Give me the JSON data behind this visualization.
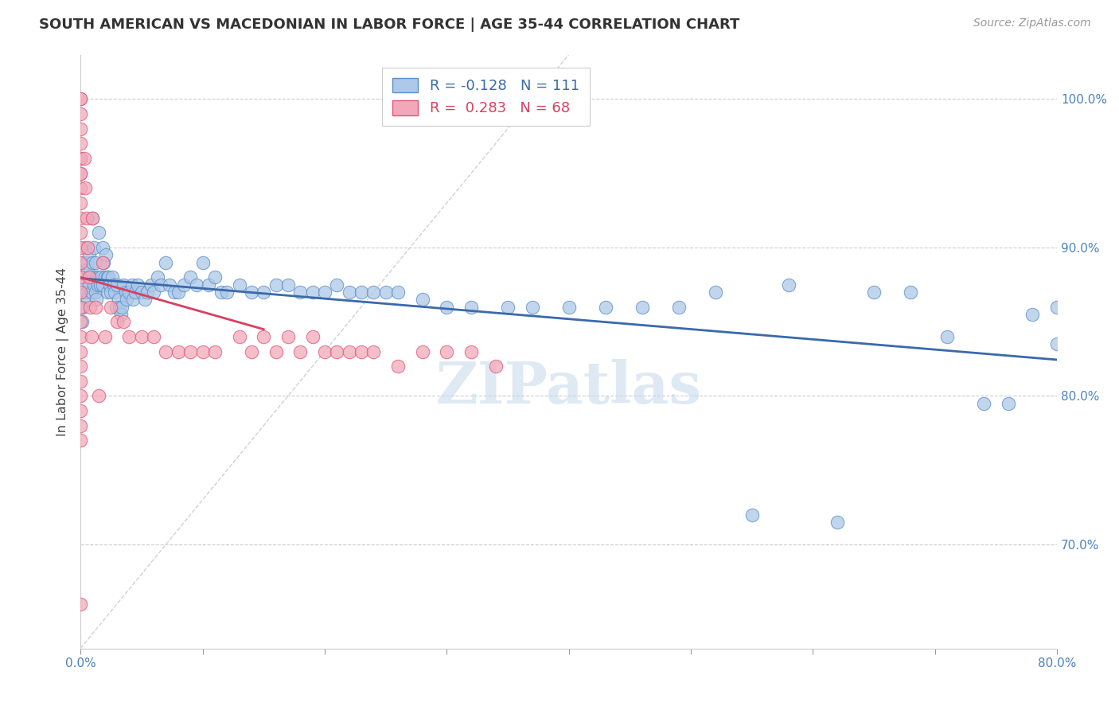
{
  "title": "SOUTH AMERICAN VS MACEDONIAN IN LABOR FORCE | AGE 35-44 CORRELATION CHART",
  "source": "Source: ZipAtlas.com",
  "ylabel": "In Labor Force | Age 35-44",
  "xlim": [
    0.0,
    0.8
  ],
  "ylim": [
    0.63,
    1.03
  ],
  "xticks": [
    0.0,
    0.1,
    0.2,
    0.3,
    0.4,
    0.5,
    0.6,
    0.7,
    0.8
  ],
  "xticklabels": [
    "0.0%",
    "",
    "",
    "",
    "",
    "",
    "",
    "",
    "80.0%"
  ],
  "yticks_right": [
    0.7,
    0.8,
    0.9,
    1.0
  ],
  "ytick_labels_right": [
    "70.0%",
    "80.0%",
    "90.0%",
    "100.0%"
  ],
  "blue_R": -0.128,
  "blue_N": 111,
  "pink_R": 0.283,
  "pink_N": 68,
  "blue_color": "#adc8e8",
  "pink_color": "#f2a8ba",
  "blue_edge_color": "#5b8fca",
  "pink_edge_color": "#e05878",
  "blue_line_color": "#3a6aaa",
  "pink_line_color": "#d84060",
  "diag_line_color": "#cccccc",
  "watermark": "ZIPatlas",
  "blue_scatter_x": [
    0.001,
    0.001,
    0.001,
    0.002,
    0.002,
    0.003,
    0.003,
    0.004,
    0.004,
    0.005,
    0.005,
    0.006,
    0.006,
    0.007,
    0.007,
    0.008,
    0.009,
    0.01,
    0.01,
    0.011,
    0.011,
    0.012,
    0.012,
    0.013,
    0.013,
    0.014,
    0.015,
    0.015,
    0.016,
    0.017,
    0.018,
    0.018,
    0.019,
    0.02,
    0.021,
    0.022,
    0.022,
    0.023,
    0.024,
    0.025,
    0.026,
    0.027,
    0.028,
    0.029,
    0.03,
    0.031,
    0.032,
    0.033,
    0.034,
    0.035,
    0.037,
    0.038,
    0.04,
    0.042,
    0.043,
    0.045,
    0.047,
    0.05,
    0.053,
    0.055,
    0.058,
    0.06,
    0.063,
    0.066,
    0.07,
    0.073,
    0.077,
    0.08,
    0.085,
    0.09,
    0.095,
    0.1,
    0.105,
    0.11,
    0.115,
    0.12,
    0.13,
    0.14,
    0.15,
    0.16,
    0.17,
    0.18,
    0.19,
    0.2,
    0.21,
    0.22,
    0.23,
    0.24,
    0.25,
    0.26,
    0.28,
    0.3,
    0.32,
    0.35,
    0.37,
    0.4,
    0.43,
    0.46,
    0.49,
    0.52,
    0.55,
    0.58,
    0.62,
    0.65,
    0.68,
    0.71,
    0.74,
    0.76,
    0.78,
    0.8,
    0.8
  ],
  "blue_scatter_y": [
    0.87,
    0.86,
    0.85,
    0.88,
    0.86,
    0.89,
    0.87,
    0.9,
    0.875,
    0.89,
    0.87,
    0.885,
    0.865,
    0.895,
    0.875,
    0.88,
    0.87,
    0.92,
    0.89,
    0.9,
    0.875,
    0.89,
    0.87,
    0.88,
    0.865,
    0.875,
    0.91,
    0.88,
    0.875,
    0.88,
    0.9,
    0.875,
    0.89,
    0.88,
    0.895,
    0.88,
    0.87,
    0.88,
    0.875,
    0.87,
    0.88,
    0.875,
    0.87,
    0.86,
    0.875,
    0.865,
    0.86,
    0.855,
    0.86,
    0.875,
    0.87,
    0.865,
    0.87,
    0.875,
    0.865,
    0.87,
    0.875,
    0.87,
    0.865,
    0.87,
    0.875,
    0.87,
    0.88,
    0.875,
    0.89,
    0.875,
    0.87,
    0.87,
    0.875,
    0.88,
    0.875,
    0.89,
    0.875,
    0.88,
    0.87,
    0.87,
    0.875,
    0.87,
    0.87,
    0.875,
    0.875,
    0.87,
    0.87,
    0.87,
    0.875,
    0.87,
    0.87,
    0.87,
    0.87,
    0.87,
    0.865,
    0.86,
    0.86,
    0.86,
    0.86,
    0.86,
    0.86,
    0.86,
    0.86,
    0.87,
    0.72,
    0.875,
    0.715,
    0.87,
    0.87,
    0.84,
    0.795,
    0.795,
    0.855,
    0.835,
    0.86
  ],
  "pink_scatter_x": [
    0.0,
    0.0,
    0.0,
    0.0,
    0.0,
    0.0,
    0.0,
    0.0,
    0.0,
    0.0,
    0.0,
    0.0,
    0.0,
    0.0,
    0.0,
    0.0,
    0.0,
    0.0,
    0.0,
    0.0,
    0.0,
    0.0,
    0.0,
    0.0,
    0.0,
    0.0,
    0.0,
    0.0,
    0.003,
    0.004,
    0.005,
    0.006,
    0.007,
    0.008,
    0.009,
    0.01,
    0.012,
    0.015,
    0.018,
    0.02,
    0.025,
    0.03,
    0.035,
    0.04,
    0.05,
    0.06,
    0.07,
    0.08,
    0.09,
    0.1,
    0.11,
    0.13,
    0.14,
    0.15,
    0.16,
    0.17,
    0.18,
    0.19,
    0.2,
    0.21,
    0.22,
    0.23,
    0.24,
    0.26,
    0.28,
    0.3,
    0.32,
    0.34
  ],
  "pink_scatter_y": [
    1.0,
    1.0,
    0.99,
    0.98,
    0.97,
    0.96,
    0.96,
    0.95,
    0.95,
    0.94,
    0.93,
    0.92,
    0.91,
    0.9,
    0.89,
    0.88,
    0.87,
    0.86,
    0.85,
    0.84,
    0.83,
    0.82,
    0.81,
    0.8,
    0.79,
    0.78,
    0.77,
    0.66,
    0.96,
    0.94,
    0.92,
    0.9,
    0.88,
    0.86,
    0.84,
    0.92,
    0.86,
    0.8,
    0.89,
    0.84,
    0.86,
    0.85,
    0.85,
    0.84,
    0.84,
    0.84,
    0.83,
    0.83,
    0.83,
    0.83,
    0.83,
    0.84,
    0.83,
    0.84,
    0.83,
    0.84,
    0.83,
    0.84,
    0.83,
    0.83,
    0.83,
    0.83,
    0.83,
    0.82,
    0.83,
    0.83,
    0.83,
    0.82
  ]
}
